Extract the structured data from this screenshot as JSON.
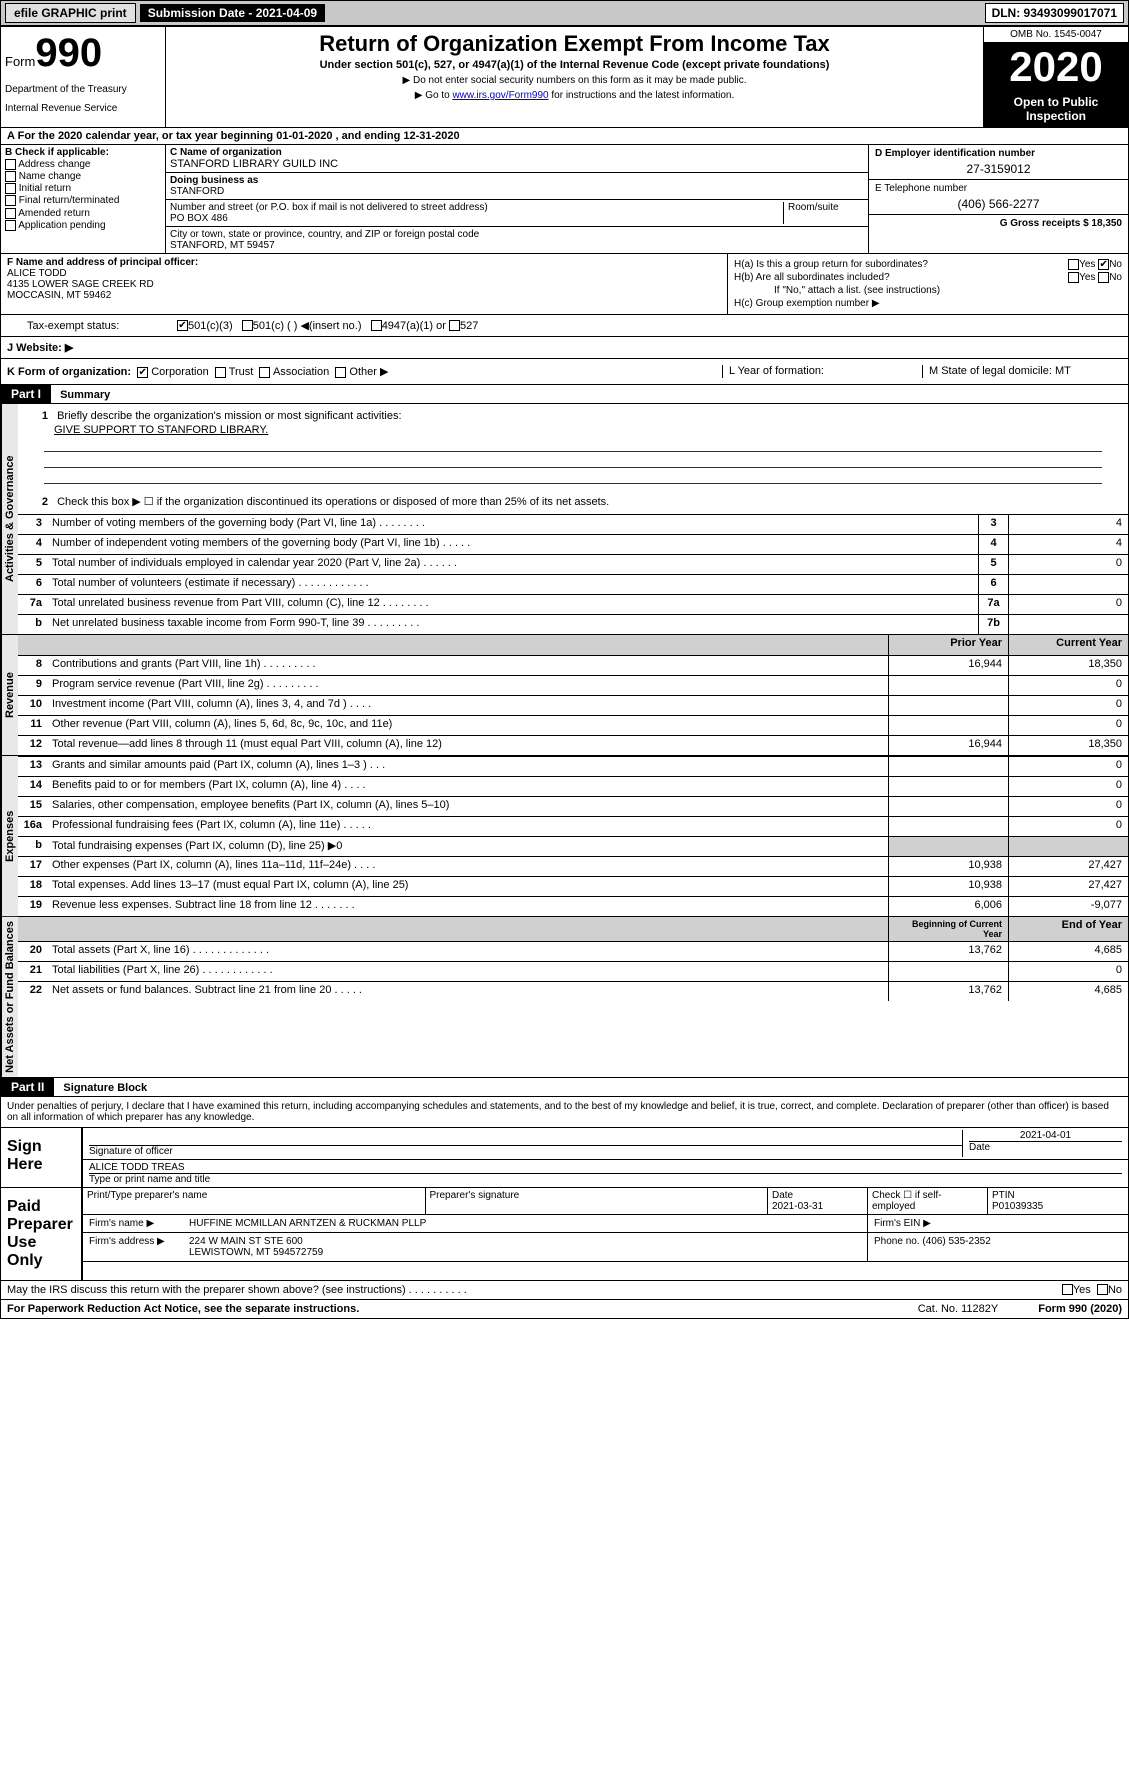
{
  "topbar": {
    "efile": "efile GRAPHIC print",
    "subdate_lbl": "Submission Date - 2021-04-09",
    "dln": "DLN: 93493099017071"
  },
  "header": {
    "form_word": "Form",
    "form_num": "990",
    "dept": "Department of the Treasury",
    "irs": "Internal Revenue Service",
    "title": "Return of Organization Exempt From Income Tax",
    "sub": "Under section 501(c), 527, or 4947(a)(1) of the Internal Revenue Code (except private foundations)",
    "note1": "▶ Do not enter social security numbers on this form as it may be made public.",
    "note2_a": "▶ Go to ",
    "note2_link": "www.irs.gov/Form990",
    "note2_b": " for instructions and the latest information.",
    "omb": "OMB No. 1545-0047",
    "year": "2020",
    "open": "Open to Public Inspection"
  },
  "lineA": "For the 2020 calendar year, or tax year beginning 01-01-2020   , and ending 12-31-2020",
  "colB": {
    "hdr": "B Check if applicable:",
    "items": [
      "Address change",
      "Name change",
      "Initial return",
      "Final return/terminated",
      "Amended return",
      "Application pending"
    ]
  },
  "colC": {
    "name_lbl": "C Name of organization",
    "name": "STANFORD LIBRARY GUILD INC",
    "dba_lbl": "Doing business as",
    "dba": "STANFORD",
    "addr_lbl": "Number and street (or P.O. box if mail is not delivered to street address)",
    "room_lbl": "Room/suite",
    "addr": "PO BOX 486",
    "city_lbl": "City or town, state or province, country, and ZIP or foreign postal code",
    "city": "STANFORD, MT  59457"
  },
  "colD": {
    "d_lbl": "D Employer identification number",
    "d_val": "27-3159012",
    "e_lbl": "E Telephone number",
    "e_val": "(406) 566-2277",
    "g_lbl": "G Gross receipts $ 18,350"
  },
  "colF": {
    "lbl": "F  Name and address of principal officer:",
    "name": "ALICE TODD",
    "addr1": "4135 LOWER SAGE CREEK RD",
    "addr2": "MOCCASIN, MT  59462"
  },
  "colH": {
    "ha": "H(a)  Is this a group return for subordinates?",
    "hb": "H(b)  Are all subordinates included?",
    "hb_note": "If \"No,\" attach a list. (see instructions)",
    "hc": "H(c)  Group exemption number ▶",
    "yes": "Yes",
    "no": "No"
  },
  "tax": {
    "lbl": "Tax-exempt status:",
    "opts": [
      "501(c)(3)",
      "501(c) (  ) ◀(insert no.)",
      "4947(a)(1) or",
      "527"
    ]
  },
  "website_lbl": "J   Website: ▶",
  "rowK": {
    "lbl": "K Form of organization:",
    "opts": [
      "Corporation",
      "Trust",
      "Association",
      "Other ▶"
    ],
    "l_lbl": "L Year of formation:",
    "m_lbl": "M State of legal domicile: MT"
  },
  "part1": {
    "hdr": "Part I",
    "title": "Summary",
    "q1": "Briefly describe the organization's mission or most significant activities:",
    "mission": "GIVE SUPPORT TO STANFORD LIBRARY.",
    "q2": "Check this box ▶ ☐  if the organization discontinued its operations or disposed of more than 25% of its net assets.",
    "vtab1": "Activities & Governance",
    "vtab2": "Revenue",
    "vtab3": "Expenses",
    "vtab4": "Net Assets or Fund Balances",
    "lines_gov": [
      {
        "n": "3",
        "t": "Number of voting members of the governing body (Part VI, line 1a)  .   .   .   .   .   .   .   .",
        "bn": "3",
        "v": "4"
      },
      {
        "n": "4",
        "t": "Number of independent voting members of the governing body (Part VI, line 1b)  .   .   .   .   .",
        "bn": "4",
        "v": "4"
      },
      {
        "n": "5",
        "t": "Total number of individuals employed in calendar year 2020 (Part V, line 2a)  .   .   .   .   .   .",
        "bn": "5",
        "v": "0"
      },
      {
        "n": "6",
        "t": "Total number of volunteers (estimate if necessary)  .   .   .   .   .   .   .   .   .   .   .   .",
        "bn": "6",
        "v": ""
      },
      {
        "n": "7a",
        "t": "Total unrelated business revenue from Part VIII, column (C), line 12  .   .   .   .   .   .   .   .",
        "bn": "7a",
        "v": "0"
      },
      {
        "n": "b",
        "t": "Net unrelated business taxable income from Form 990-T, line 39  .   .   .   .   .   .   .   .   .",
        "bn": "7b",
        "v": ""
      }
    ],
    "col_hdr_prior": "Prior Year",
    "col_hdr_curr": "Current Year",
    "lines_rev": [
      {
        "n": "8",
        "t": "Contributions and grants (Part VIII, line 1h)  .   .   .   .   .   .   .   .   .",
        "p": "16,944",
        "c": "18,350"
      },
      {
        "n": "9",
        "t": "Program service revenue (Part VIII, line 2g)  .   .   .   .   .   .   .   .   .",
        "p": "",
        "c": "0"
      },
      {
        "n": "10",
        "t": "Investment income (Part VIII, column (A), lines 3, 4, and 7d )  .   .   .   .",
        "p": "",
        "c": "0"
      },
      {
        "n": "11",
        "t": "Other revenue (Part VIII, column (A), lines 5, 6d, 8c, 9c, 10c, and 11e)",
        "p": "",
        "c": "0"
      },
      {
        "n": "12",
        "t": "Total revenue—add lines 8 through 11 (must equal Part VIII, column (A), line 12)",
        "p": "16,944",
        "c": "18,350"
      }
    ],
    "lines_exp": [
      {
        "n": "13",
        "t": "Grants and similar amounts paid (Part IX, column (A), lines 1–3 )  .   .   .",
        "p": "",
        "c": "0"
      },
      {
        "n": "14",
        "t": "Benefits paid to or for members (Part IX, column (A), line 4)  .   .   .   .",
        "p": "",
        "c": "0"
      },
      {
        "n": "15",
        "t": "Salaries, other compensation, employee benefits (Part IX, column (A), lines 5–10)",
        "p": "",
        "c": "0"
      },
      {
        "n": "16a",
        "t": "Professional fundraising fees (Part IX, column (A), line 11e)  .   .   .   .   .",
        "p": "",
        "c": "0"
      },
      {
        "n": "b",
        "t": "Total fundraising expenses (Part IX, column (D), line 25) ▶0",
        "p": "SHADE",
        "c": "SHADE"
      },
      {
        "n": "17",
        "t": "Other expenses (Part IX, column (A), lines 11a–11d, 11f–24e)  .   .   .   .",
        "p": "10,938",
        "c": "27,427"
      },
      {
        "n": "18",
        "t": "Total expenses. Add lines 13–17 (must equal Part IX, column (A), line 25)",
        "p": "10,938",
        "c": "27,427"
      },
      {
        "n": "19",
        "t": "Revenue less expenses. Subtract line 18 from line 12  .   .   .   .   .   .   .",
        "p": "6,006",
        "c": "-9,077"
      }
    ],
    "col_hdr_beg": "Beginning of Current Year",
    "col_hdr_end": "End of Year",
    "lines_net": [
      {
        "n": "20",
        "t": "Total assets (Part X, line 16)  .   .   .   .   .   .   .   .   .   .   .   .   .",
        "p": "13,762",
        "c": "4,685"
      },
      {
        "n": "21",
        "t": "Total liabilities (Part X, line 26)  .   .   .   .   .   .   .   .   .   .   .   .",
        "p": "",
        "c": "0"
      },
      {
        "n": "22",
        "t": "Net assets or fund balances. Subtract line 21 from line 20  .   .   .   .   .",
        "p": "13,762",
        "c": "4,685"
      }
    ]
  },
  "part2": {
    "hdr": "Part II",
    "title": "Signature Block",
    "decl": "Under penalties of perjury, I declare that I have examined this return, including accompanying schedules and statements, and to the best of my knowledge and belief, it is true, correct, and complete. Declaration of preparer (other than officer) is based on all information of which preparer has any knowledge.",
    "sign_here": "Sign Here",
    "sig_officer": "Signature of officer",
    "sig_date": "2021-04-01",
    "sig_date_lbl": "Date",
    "officer_name": "ALICE TODD  TREAS",
    "officer_name_lbl": "Type or print name and title",
    "paid_prep": "Paid Preparer Use Only",
    "prep_name_lbl": "Print/Type preparer's name",
    "prep_sig_lbl": "Preparer's signature",
    "prep_date_lbl": "Date",
    "prep_date": "2021-03-31",
    "prep_check_lbl": "Check ☐ if self-employed",
    "ptin_lbl": "PTIN",
    "ptin": "P01039335",
    "firm_name_lbl": "Firm's name    ▶",
    "firm_name": "HUFFINE MCMILLAN ARNTZEN & RUCKMAN PLLP",
    "firm_ein_lbl": "Firm's EIN ▶",
    "firm_addr_lbl": "Firm's address ▶",
    "firm_addr1": "224 W MAIN ST STE 600",
    "firm_addr2": "LEWISTOWN, MT  594572759",
    "firm_phone_lbl": "Phone no. (406) 535-2352",
    "discuss": "May the IRS discuss this return with the preparer shown above? (see instructions)   .   .   .   .   .   .   .   .   .   .",
    "discuss_yes": "Yes",
    "discuss_no": "No"
  },
  "footer": {
    "pra": "For Paperwork Reduction Act Notice, see the separate instructions.",
    "cat": "Cat. No. 11282Y",
    "form": "Form 990 (2020)"
  }
}
